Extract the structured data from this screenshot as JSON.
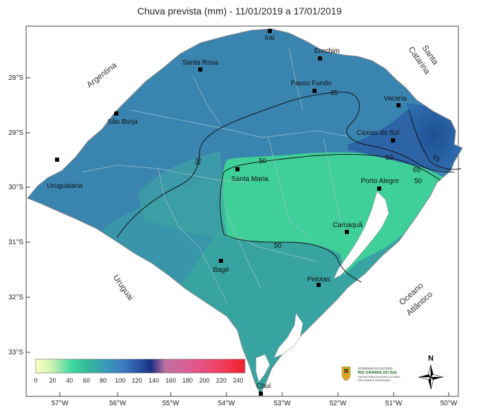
{
  "title": "Chuva prevista (mm) - 11/01/2019 a 17/01/2019",
  "cities": [
    "Iraí",
    "Erechim",
    "Santa Rosa",
    "Passo Fundo",
    "São Borja",
    "Vacaria",
    "Caxias do Sul",
    "Uruguaiana",
    "Santa Maria",
    "Porto Alegre",
    "Camaquã",
    "Bagé",
    "Pelotas",
    "Chuí"
  ],
  "regions": {
    "argentina": "Argentina",
    "santa_catarina_1": "Santa",
    "santa_catarina_2": "Catarina",
    "uruguai": "Uruguai",
    "oceano_1": "Oceano",
    "oceano_2": "Atlântico"
  },
  "lat_labels": [
    "28°S",
    "29°S",
    "30°S",
    "31°S",
    "32°S",
    "33°S"
  ],
  "lon_labels": [
    "57°W",
    "56°W",
    "55°W",
    "54°W",
    "53°W",
    "52°W",
    "51°W",
    "50°W"
  ],
  "isolines": [
    "65",
    "65",
    "50",
    "50",
    "50",
    "65",
    "65"
  ],
  "colorbar": {
    "ticks": [
      "0",
      "20",
      "40",
      "60",
      "80",
      "100",
      "120",
      "140",
      "160",
      "180",
      "200",
      "220",
      "240"
    ],
    "colors": [
      "#ffffc0",
      "#c8f0b0",
      "#3ed9a0",
      "#35b89a",
      "#3a9ab8",
      "#3a7ac0",
      "#2a4fa0",
      "#1a2f80",
      "#c070a0",
      "#e05a90",
      "#f04060",
      "#f02030"
    ]
  },
  "north_label": "N",
  "logo": {
    "line1": "GOVERNO DO ESTADO",
    "line2": "RIO GRANDE DO SUL",
    "line3": "SECRETARIA DA AGRICULTURA,",
    "line4": "PECUÁRIA E IRRIGAÇÃO"
  }
}
